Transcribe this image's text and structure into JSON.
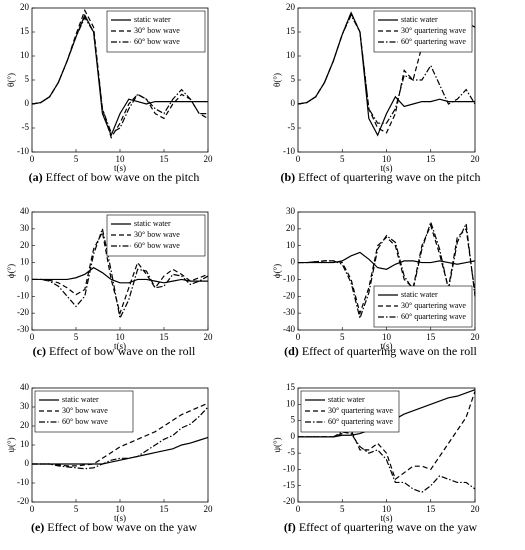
{
  "chart_data": [
    {
      "type": "line",
      "label": "(a)",
      "caption": "Effect of bow wave on the pitch",
      "xlabel": "t(s)",
      "ylabel": "θ(°)",
      "x": [
        0,
        1,
        2,
        3,
        4,
        5,
        6,
        7,
        8,
        9,
        10,
        11,
        12,
        13,
        14,
        15,
        16,
        17,
        18,
        19,
        20
      ],
      "xlim": [
        0,
        20
      ],
      "xticks": [
        0,
        5,
        10,
        15,
        20
      ],
      "ylim": [
        -10,
        20
      ],
      "yticks": [
        -10,
        -5,
        0,
        5,
        10,
        15,
        20
      ],
      "legend": "upper right",
      "series": [
        {
          "name": "static water",
          "color": "#000000",
          "dash": "solid",
          "values": [
            0,
            0.3,
            1.5,
            4.5,
            9,
            14,
            18.5,
            15,
            -2,
            -6.5,
            -2,
            1,
            0.5,
            0,
            0.5,
            0.5,
            0.5,
            0.5,
            0.5,
            0.5,
            0.5
          ]
        },
        {
          "name": "30° bow wave",
          "color": "#000000",
          "dash": "dashed",
          "values": [
            0,
            0.3,
            1.5,
            4.5,
            9,
            14.5,
            19.5,
            16,
            -1,
            -7,
            -4,
            0,
            2,
            1,
            -2,
            -3,
            0,
            2,
            1,
            -2,
            -3
          ]
        },
        {
          "name": "60° bow wave",
          "color": "#000000",
          "dash": "dashdot",
          "values": [
            0,
            0.3,
            1.5,
            4.5,
            9,
            14,
            18,
            15,
            -1,
            -6,
            -5,
            -1,
            2,
            1,
            -1,
            -2,
            1,
            3,
            1,
            -2,
            -2
          ]
        }
      ]
    },
    {
      "type": "line",
      "label": "(b)",
      "caption": "Effect of quartering wave on the pitch",
      "xlabel": "t(s)",
      "ylabel": "θ(°)",
      "x": [
        0,
        1,
        2,
        3,
        4,
        5,
        6,
        7,
        8,
        9,
        10,
        11,
        12,
        13,
        14,
        15,
        16,
        17,
        18,
        19,
        20
      ],
      "xlim": [
        0,
        20
      ],
      "xticks": [
        0,
        5,
        10,
        15,
        20
      ],
      "ylim": [
        -10,
        20
      ],
      "yticks": [
        -10,
        -5,
        0,
        5,
        10,
        15,
        20
      ],
      "legend": "upper right",
      "series": [
        {
          "name": "static water",
          "color": "#000000",
          "dash": "solid",
          "values": [
            0,
            0.3,
            1.5,
            4.5,
            9,
            14.5,
            19,
            15,
            -3,
            -6.5,
            -2,
            1.5,
            -0.5,
            0,
            0.5,
            0.5,
            1,
            0.5,
            0.5,
            0.5,
            0.5
          ]
        },
        {
          "name": "30° quartering wave",
          "color": "#000000",
          "dash": "dashed",
          "values": [
            0,
            0.3,
            1.5,
            4.5,
            9,
            14.5,
            19,
            15,
            -1,
            -5,
            -6,
            -2,
            7,
            5,
            12,
            11,
            16,
            11,
            13,
            17,
            16
          ]
        },
        {
          "name": "60° quartering wave",
          "color": "#000000",
          "dash": "dashdot",
          "values": [
            0,
            0.3,
            1.5,
            4.5,
            9,
            14.5,
            18.5,
            15,
            -1,
            -4,
            -4,
            -1,
            6,
            5,
            5,
            8,
            4,
            0,
            1,
            3,
            0
          ]
        }
      ]
    },
    {
      "type": "line",
      "label": "(c)",
      "caption": "Effect of bow wave on the roll",
      "xlabel": "t(s)",
      "ylabel": "ϕ(°)",
      "x": [
        0,
        1,
        2,
        3,
        4,
        5,
        6,
        7,
        8,
        9,
        10,
        11,
        12,
        13,
        14,
        15,
        16,
        17,
        18,
        19,
        20
      ],
      "xlim": [
        0,
        20
      ],
      "xticks": [
        0,
        5,
        10,
        15,
        20
      ],
      "ylim": [
        -30,
        40
      ],
      "yticks": [
        -30,
        -20,
        -10,
        0,
        10,
        20,
        30,
        40
      ],
      "legend": "upper right",
      "series": [
        {
          "name": "static water",
          "color": "#000000",
          "dash": "solid",
          "values": [
            0,
            0,
            0,
            0,
            0,
            1,
            3,
            7,
            4,
            0,
            -2,
            -2,
            0,
            0,
            -1,
            -2,
            -1,
            0,
            -1,
            -1,
            -1
          ]
        },
        {
          "name": "30° bow wave",
          "color": "#000000",
          "dash": "dashed",
          "values": [
            0,
            0,
            -0.5,
            -2,
            -5,
            -9,
            -6,
            18,
            28,
            0,
            -20,
            -5,
            10,
            3,
            -5,
            2,
            6,
            3,
            -1,
            1,
            3
          ]
        },
        {
          "name": "60° bow wave",
          "color": "#000000",
          "dash": "dashdot",
          "values": [
            0,
            0,
            -1,
            -4,
            -10,
            -16,
            -10,
            15,
            30,
            5,
            -23,
            -12,
            6,
            5,
            -5,
            -4,
            3,
            2,
            -3,
            -1,
            2
          ]
        }
      ]
    },
    {
      "type": "line",
      "label": "(d)",
      "caption": "Effect of quartering wave on the roll",
      "xlabel": "t(s)",
      "ylabel": "ϕ(°)",
      "x": [
        0,
        1,
        2,
        3,
        4,
        5,
        6,
        7,
        8,
        9,
        10,
        11,
        12,
        13,
        14,
        15,
        16,
        17,
        18,
        19,
        20
      ],
      "xlim": [
        0,
        20
      ],
      "xticks": [
        0,
        5,
        10,
        15,
        20
      ],
      "ylim": [
        -40,
        30
      ],
      "yticks": [
        -40,
        -30,
        -20,
        -10,
        0,
        10,
        20,
        30
      ],
      "legend": "lower right",
      "series": [
        {
          "name": "static water",
          "color": "#000000",
          "dash": "solid",
          "values": [
            0,
            0,
            0,
            0,
            0,
            1,
            4,
            6,
            2,
            -3,
            -4,
            -1,
            1,
            1,
            0,
            0,
            1,
            0,
            -1,
            0,
            1
          ]
        },
        {
          "name": "30° quartering wave",
          "color": "#000000",
          "dash": "dashed",
          "values": [
            0,
            0,
            0.5,
            1,
            1,
            0,
            -10,
            -30,
            -15,
            10,
            15,
            10,
            -10,
            -15,
            10,
            22,
            5,
            -15,
            15,
            20,
            -18
          ]
        },
        {
          "name": "60° quartering wave",
          "color": "#000000",
          "dash": "dashdot",
          "values": [
            0,
            0,
            0.5,
            1,
            1,
            -1,
            -12,
            -33,
            -18,
            8,
            16,
            12,
            -8,
            -16,
            8,
            24,
            8,
            -16,
            12,
            23,
            -20
          ]
        }
      ]
    },
    {
      "type": "line",
      "label": "(e)",
      "caption": "Effect of bow wave on the yaw",
      "xlabel": "t(s)",
      "ylabel": "ψ(°)",
      "x": [
        0,
        1,
        2,
        3,
        4,
        5,
        6,
        7,
        8,
        9,
        10,
        11,
        12,
        13,
        14,
        15,
        16,
        17,
        18,
        19,
        20
      ],
      "xlim": [
        0,
        20
      ],
      "xticks": [
        0,
        5,
        10,
        15,
        20
      ],
      "ylim": [
        -20,
        40
      ],
      "yticks": [
        -20,
        -10,
        0,
        10,
        20,
        30,
        40
      ],
      "legend": "upper left",
      "series": [
        {
          "name": "static water",
          "color": "#000000",
          "dash": "solid",
          "values": [
            0,
            0,
            0,
            0,
            0,
            0,
            0,
            0,
            0,
            1,
            2,
            3,
            4,
            5,
            6,
            7,
            8,
            10,
            11,
            12.5,
            14
          ]
        },
        {
          "name": "30° bow wave",
          "color": "#000000",
          "dash": "dashed",
          "values": [
            0,
            0,
            0,
            -0.5,
            -1,
            -1,
            -0.5,
            0,
            3,
            6,
            9,
            11,
            13,
            15,
            17,
            20,
            23,
            26,
            28,
            30,
            32
          ]
        },
        {
          "name": "60° bow wave",
          "color": "#000000",
          "dash": "dashdot",
          "values": [
            0,
            0,
            0,
            -1,
            -1.5,
            -2,
            -2.5,
            -2,
            0,
            2,
            3,
            3,
            4,
            7,
            10,
            13,
            15,
            19,
            21,
            25,
            30
          ]
        }
      ]
    },
    {
      "type": "line",
      "label": "(f)",
      "caption": "Effect of quartering wave on the yaw",
      "xlabel": "t(s)",
      "ylabel": "ψ(°)",
      "x": [
        0,
        1,
        2,
        3,
        4,
        5,
        6,
        7,
        8,
        9,
        10,
        11,
        12,
        13,
        14,
        15,
        16,
        17,
        18,
        19,
        20
      ],
      "xlim": [
        0,
        20
      ],
      "xticks": [
        0,
        5,
        10,
        15,
        20
      ],
      "ylim": [
        -20,
        15
      ],
      "yticks": [
        -20,
        -15,
        -10,
        -5,
        0,
        5,
        10,
        15
      ],
      "legend": "upper left",
      "series": [
        {
          "name": "static water",
          "color": "#000000",
          "dash": "solid",
          "values": [
            0,
            0,
            0,
            0,
            0,
            0.5,
            0.5,
            1,
            2,
            3,
            4,
            5.5,
            7,
            8,
            9,
            10,
            11,
            12,
            12.5,
            13.5,
            14.5
          ]
        },
        {
          "name": "30° quartering wave",
          "color": "#000000",
          "dash": "dashed",
          "values": [
            0,
            0,
            0,
            0,
            0,
            1,
            2,
            -4,
            -4,
            -2,
            -5,
            -13,
            -11,
            -9,
            -9,
            -10,
            -6,
            -2,
            2,
            6,
            14
          ]
        },
        {
          "name": "60° quartering wave",
          "color": "#000000",
          "dash": "dashdot",
          "values": [
            0,
            0,
            0,
            0,
            0,
            1.5,
            1,
            -3,
            -5,
            -4,
            -7,
            -14,
            -14,
            -16,
            -17,
            -15,
            -12,
            -13,
            -14,
            -14,
            -16
          ]
        }
      ]
    }
  ]
}
